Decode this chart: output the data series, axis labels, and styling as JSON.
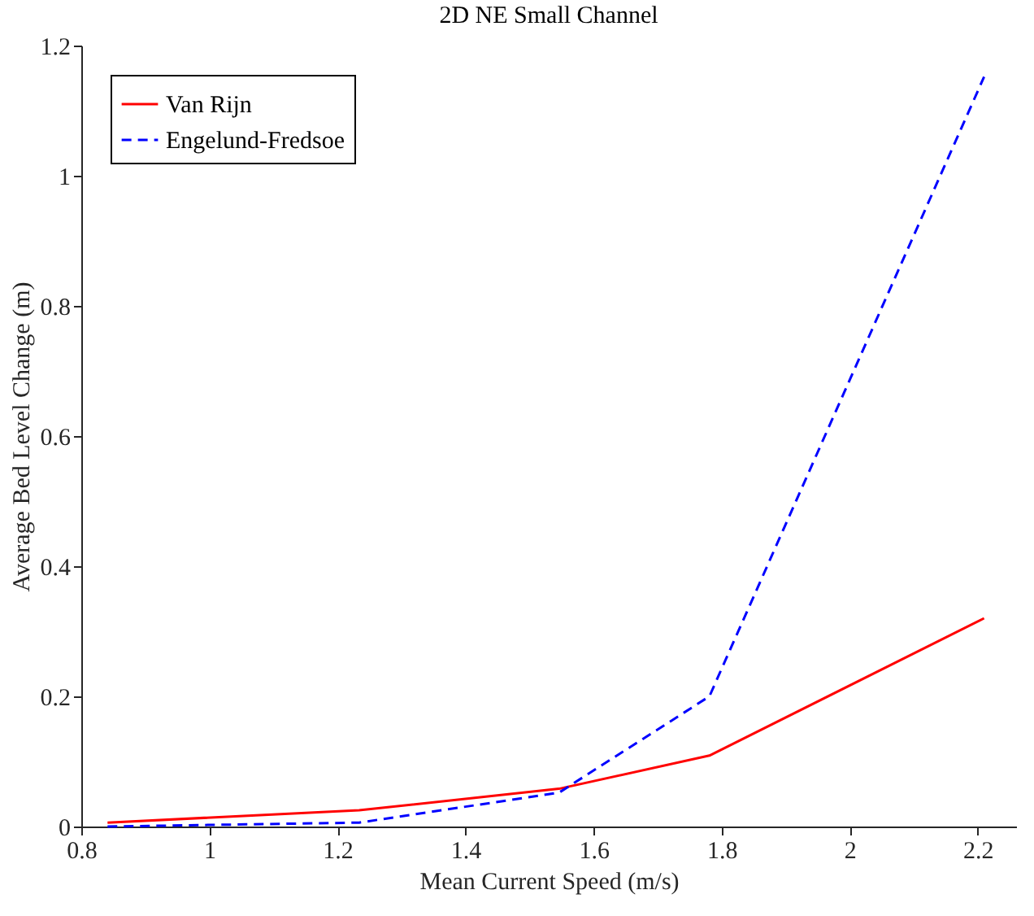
{
  "chart_data": {
    "type": "line",
    "title": "2D NE Small Channel",
    "xlabel": "Mean Current Speed (m/s)",
    "ylabel": "Average Bed Level Change (m)",
    "x": [
      0.841,
      1.234,
      1.546,
      1.781,
      2.21
    ],
    "series": [
      {
        "name": "Van Rijn",
        "color": "#ff0000",
        "line_style": "solid",
        "values": [
          0.006,
          0.025,
          0.058,
          0.109,
          0.32
        ]
      },
      {
        "name": "Engelund-Fredsoe",
        "color": "#0000ff",
        "line_style": "dashed",
        "values": [
          0.0,
          0.006,
          0.052,
          0.2,
          1.152
        ]
      }
    ],
    "xlim": [
      0.8,
      2.26
    ],
    "xticks": [
      0.8,
      1,
      1.2,
      1.4,
      1.6,
      1.8,
      2,
      2.2
    ],
    "ylim": [
      0,
      1.2
    ],
    "yticks": [
      0,
      0.2,
      0.4,
      0.6,
      0.8,
      1,
      1.2
    ],
    "grid": false,
    "legend": "top left",
    "marker": "none"
  }
}
